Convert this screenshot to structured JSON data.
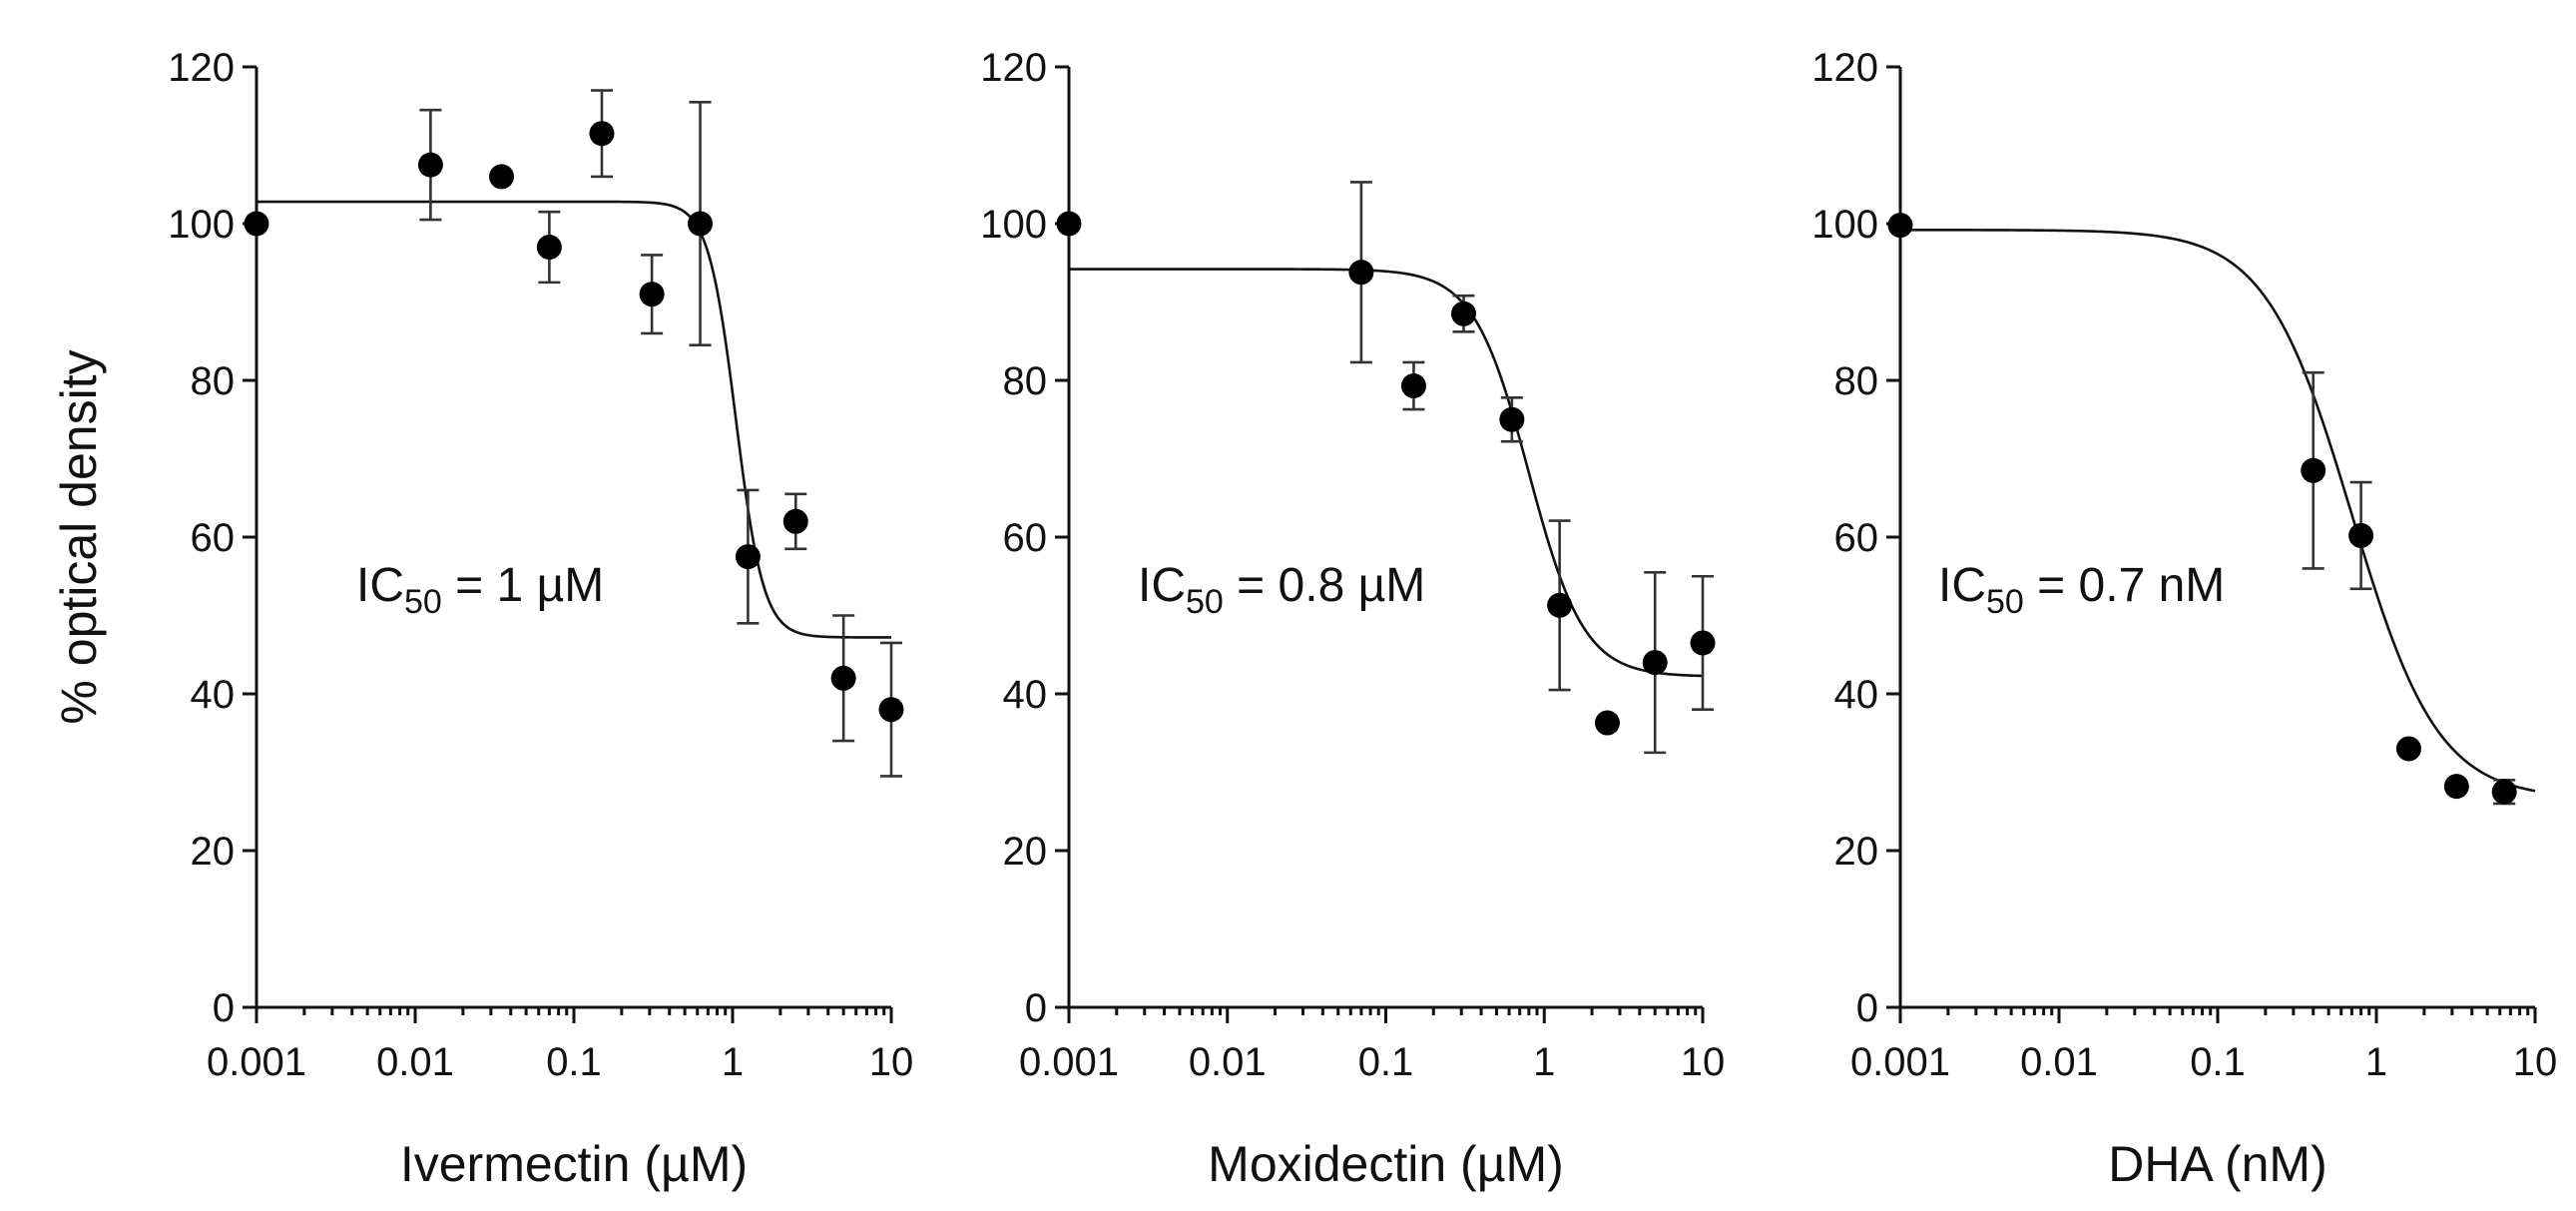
{
  "chart_data": [
    {
      "type": "scatter",
      "xscale": "log",
      "xlabel": "Ivermectin (µM)",
      "ylabel": "% optical density",
      "xlim": [
        0.001,
        10
      ],
      "ylim": [
        0,
        120
      ],
      "xticks": [
        "0.001",
        "0.01",
        "0.1",
        "1",
        "10"
      ],
      "yticks": [
        "0",
        "20",
        "40",
        "60",
        "80",
        "100",
        "120"
      ],
      "annotation": {
        "prefix": "IC",
        "subscript": "50",
        "suffix": " = 1 µM"
      },
      "points": [
        {
          "x": 0.001,
          "y": 100
        },
        {
          "x": 0.0125,
          "y": 107.5,
          "err": 7
        },
        {
          "x": 0.035,
          "y": 106
        },
        {
          "x": 0.07,
          "y": 97,
          "err": 4.5
        },
        {
          "x": 0.15,
          "y": 111.5,
          "err": 5.5
        },
        {
          "x": 0.31,
          "y": 91,
          "err": 5
        },
        {
          "x": 0.625,
          "y": 100,
          "err": 15.5
        },
        {
          "x": 1.25,
          "y": 57.5,
          "err": 8.5
        },
        {
          "x": 2.5,
          "y": 62,
          "err": 3.5
        },
        {
          "x": 5,
          "y": 42,
          "err": 8
        },
        {
          "x": 10,
          "y": 38,
          "err": 8.5
        }
      ],
      "fit": {
        "top": 102.8,
        "bottom": 47.2,
        "ic50": 1.05,
        "hill": 5
      }
    },
    {
      "type": "scatter",
      "xscale": "log",
      "xlabel": "Moxidectin (µM)",
      "ylabel": "",
      "xlim": [
        0.001,
        10
      ],
      "ylim": [
        0,
        120
      ],
      "xticks": [
        "0.001",
        "0.01",
        "0.1",
        "1",
        "10"
      ],
      "yticks": [
        "0",
        "20",
        "40",
        "60",
        "80",
        "100",
        "120"
      ],
      "annotation": {
        "prefix": "IC",
        "subscript": "50",
        "suffix": " = 0.8 µM"
      },
      "points": [
        {
          "x": 0.001,
          "y": 100
        },
        {
          "x": 0.07,
          "y": 93.8,
          "err": 11.5
        },
        {
          "x": 0.15,
          "y": 79.3,
          "err": 3
        },
        {
          "x": 0.31,
          "y": 88.5,
          "err": 2.3
        },
        {
          "x": 0.625,
          "y": 75,
          "err": 2.8
        },
        {
          "x": 1.25,
          "y": 51.3,
          "err": 10.8
        },
        {
          "x": 2.5,
          "y": 36.3
        },
        {
          "x": 5,
          "y": 44,
          "err": 11.5
        },
        {
          "x": 10,
          "y": 46.5,
          "err": 8.5
        }
      ],
      "fit": {
        "top": 94.2,
        "bottom": 42.2,
        "ic50": 0.8,
        "hill": 2.5
      }
    },
    {
      "type": "scatter",
      "xscale": "log",
      "xlabel": "DHA (nM)",
      "ylabel": "",
      "xlim": [
        0.001,
        10
      ],
      "ylim": [
        0,
        120
      ],
      "xticks": [
        "0.001",
        "0.01",
        "0.1",
        "1",
        "10"
      ],
      "yticks": [
        "0",
        "20",
        "40",
        "60",
        "80",
        "100",
        "120"
      ],
      "annotation": {
        "prefix": "IC",
        "subscript": "50",
        "suffix": " = 0.7 nM"
      },
      "points": [
        {
          "x": 0.001,
          "y": 99.8
        },
        {
          "x": 0.4,
          "y": 68.5,
          "err": 12.5
        },
        {
          "x": 0.8,
          "y": 60.2,
          "err": 6.8
        },
        {
          "x": 1.6,
          "y": 33
        },
        {
          "x": 3.2,
          "y": 28.2
        },
        {
          "x": 6.4,
          "y": 27.5,
          "err": 1.5
        }
      ],
      "fit": {
        "top": 99.2,
        "bottom": 26.6,
        "ic50": 0.7,
        "hill": 1.6
      }
    }
  ]
}
